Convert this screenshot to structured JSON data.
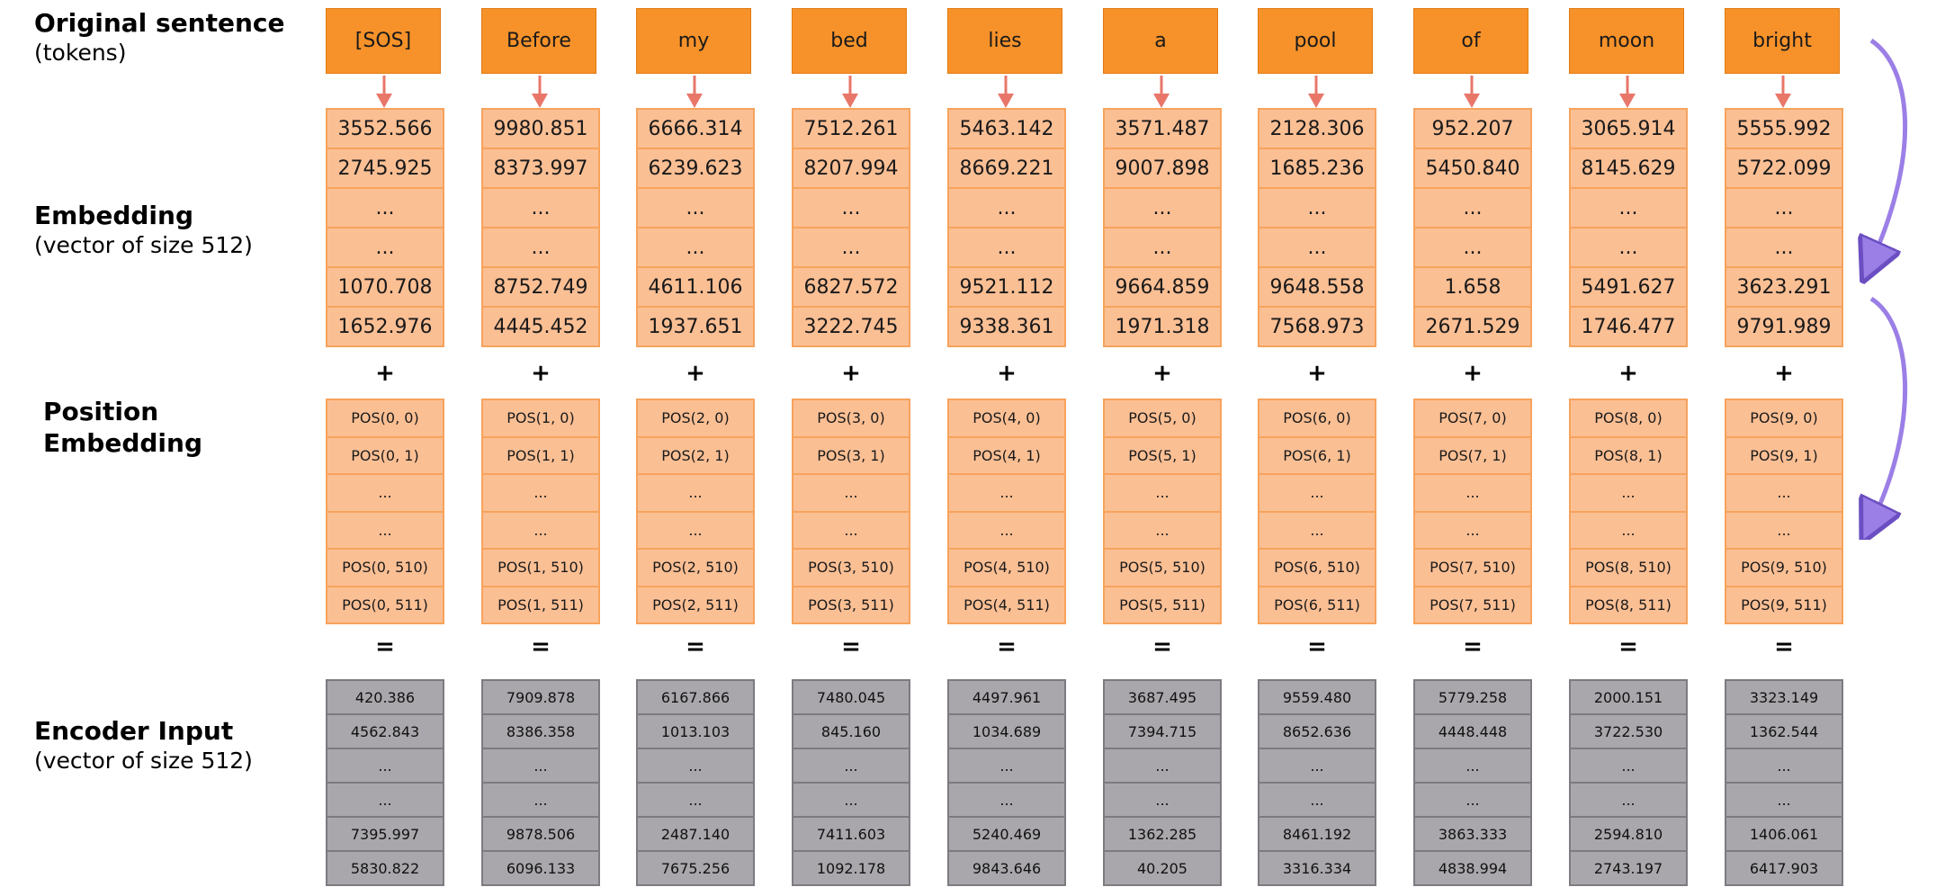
{
  "labels": {
    "original_title": "Original sentence",
    "original_sub": "(tokens)",
    "embedding_title": "Embedding",
    "embedding_sub": "(vector of size 512)",
    "position_title_1": "Position",
    "position_title_2": "Embedding",
    "encoder_title": "Encoder Input",
    "encoder_sub": "(vector of size 512)"
  },
  "operators": {
    "plus": "+",
    "equals": "="
  },
  "colors": {
    "token_fill": "#f7922a",
    "cell_fill": "#fbbf94",
    "cell_border": "#f7a35c",
    "encoder_fill": "#a9a7ab",
    "arrow_red": "#e8776a",
    "curve_purple": "#9b7fe6"
  },
  "columns": [
    {
      "token": "[SOS]",
      "embedding": [
        "3552.566",
        "2745.925",
        "...",
        "...",
        "1070.708",
        "1652.976"
      ],
      "position": [
        "POS(0, 0)",
        "POS(0, 1)",
        "...",
        "...",
        "POS(0, 510)",
        "POS(0, 511)"
      ],
      "encoder": [
        "420.386",
        "4562.843",
        "...",
        "...",
        "7395.997",
        "5830.822"
      ]
    },
    {
      "token": "Before",
      "embedding": [
        "9980.851",
        "8373.997",
        "...",
        "...",
        "8752.749",
        "4445.452"
      ],
      "position": [
        "POS(1, 0)",
        "POS(1, 1)",
        "...",
        "...",
        "POS(1, 510)",
        "POS(1, 511)"
      ],
      "encoder": [
        "7909.878",
        "8386.358",
        "...",
        "...",
        "9878.506",
        "6096.133"
      ]
    },
    {
      "token": "my",
      "embedding": [
        "6666.314",
        "6239.623",
        "...",
        "...",
        "4611.106",
        "1937.651"
      ],
      "position": [
        "POS(2, 0)",
        "POS(2, 1)",
        "...",
        "...",
        "POS(2, 510)",
        "POS(2, 511)"
      ],
      "encoder": [
        "6167.866",
        "1013.103",
        "...",
        "...",
        "2487.140",
        "7675.256"
      ]
    },
    {
      "token": "bed",
      "embedding": [
        "7512.261",
        "8207.994",
        "...",
        "...",
        "6827.572",
        "3222.745"
      ],
      "position": [
        "POS(3, 0)",
        "POS(3, 1)",
        "...",
        "...",
        "POS(3, 510)",
        "POS(3, 511)"
      ],
      "encoder": [
        "7480.045",
        "845.160",
        "...",
        "...",
        "7411.603",
        "1092.178"
      ]
    },
    {
      "token": "lies",
      "embedding": [
        "5463.142",
        "8669.221",
        "...",
        "...",
        "9521.112",
        "9338.361"
      ],
      "position": [
        "POS(4, 0)",
        "POS(4, 1)",
        "...",
        "...",
        "POS(4, 510)",
        "POS(4, 511)"
      ],
      "encoder": [
        "4497.961",
        "1034.689",
        "...",
        "...",
        "5240.469",
        "9843.646"
      ]
    },
    {
      "token": "a",
      "embedding": [
        "3571.487",
        "9007.898",
        "...",
        "...",
        "9664.859",
        "1971.318"
      ],
      "position": [
        "POS(5, 0)",
        "POS(5, 1)",
        "...",
        "...",
        "POS(5, 510)",
        "POS(5, 511)"
      ],
      "encoder": [
        "3687.495",
        "7394.715",
        "...",
        "...",
        "1362.285",
        "40.205"
      ]
    },
    {
      "token": "pool",
      "embedding": [
        "2128.306",
        "1685.236",
        "...",
        "...",
        "9648.558",
        "7568.973"
      ],
      "position": [
        "POS(6, 0)",
        "POS(6, 1)",
        "...",
        "...",
        "POS(6, 510)",
        "POS(6, 511)"
      ],
      "encoder": [
        "9559.480",
        "8652.636",
        "...",
        "...",
        "8461.192",
        "3316.334"
      ]
    },
    {
      "token": "of",
      "embedding": [
        "952.207",
        "5450.840",
        "...",
        "...",
        "1.658",
        "2671.529"
      ],
      "position": [
        "POS(7, 0)",
        "POS(7, 1)",
        "...",
        "...",
        "POS(7, 510)",
        "POS(7, 511)"
      ],
      "encoder": [
        "5779.258",
        "4448.448",
        "...",
        "...",
        "3863.333",
        "4838.994"
      ]
    },
    {
      "token": "moon",
      "embedding": [
        "3065.914",
        "8145.629",
        "...",
        "...",
        "5491.627",
        "1746.477"
      ],
      "position": [
        "POS(8, 0)",
        "POS(8, 1)",
        "...",
        "...",
        "POS(8, 510)",
        "POS(8, 511)"
      ],
      "encoder": [
        "2000.151",
        "3722.530",
        "...",
        "...",
        "2594.810",
        "2743.197"
      ]
    },
    {
      "token": "bright",
      "embedding": [
        "5555.992",
        "5722.099",
        "...",
        "...",
        "3623.291",
        "9791.989"
      ],
      "position": [
        "POS(9, 0)",
        "POS(9, 1)",
        "...",
        "...",
        "POS(9, 510)",
        "POS(9, 511)"
      ],
      "encoder": [
        "3323.149",
        "1362.544",
        "...",
        "...",
        "1406.061",
        "6417.903"
      ]
    }
  ]
}
